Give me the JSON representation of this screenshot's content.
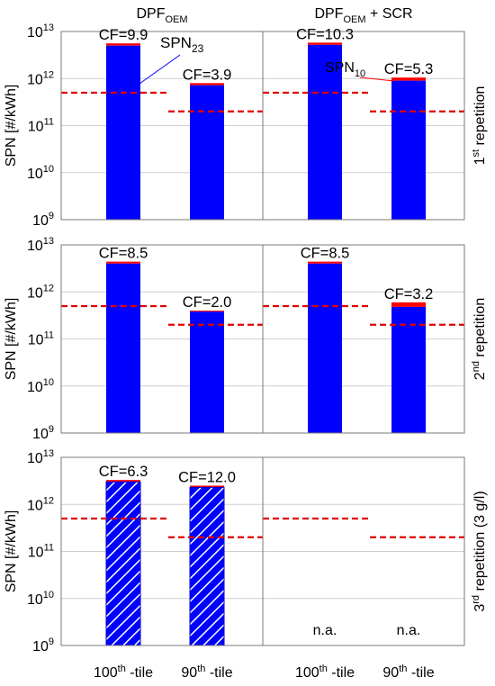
{
  "chart_data": {
    "type": "bar",
    "yscale": "log",
    "ylim": [
      1000000000.0,
      10000000000000.0
    ],
    "grid": "horizontal",
    "ylabel": "SPN [#/kWh]",
    "ytick_values": [
      1000000000.0,
      10000000000.0,
      100000000000.0,
      1000000000000.0,
      10000000000000.0
    ],
    "ytick_exponents": [
      "9",
      "10",
      "11",
      "12",
      "13"
    ],
    "ytick_base": "10",
    "categories": [
      {
        "main": "100",
        "sup": "th",
        "rest": " -tile"
      },
      {
        "main": "90",
        "sup": "th",
        "rest": " -tile"
      }
    ],
    "columns": [
      {
        "main": "DPF",
        "sub": "OEM",
        "rest": ""
      },
      {
        "main": "DPF",
        "sub": "OEM",
        "rest": " + SCR"
      }
    ],
    "rows": [
      {
        "main": "1",
        "sup": "st",
        "rest": " repetition"
      },
      {
        "main": "2",
        "sup": "nd",
        "rest": " repetition"
      },
      {
        "main": "3",
        "sup": "rd",
        "rest": " repetition (3 g/l)"
      }
    ],
    "series": [
      {
        "name_main": "SPN",
        "name_sub": "23",
        "color": "#0000ff"
      },
      {
        "name_main": "SPN",
        "name_sub": "10",
        "color": "#ff0000"
      }
    ],
    "limit_lines": {
      "color": "#e00000",
      "values": [
        500000000000.0,
        200000000000.0
      ]
    },
    "na_text": "n.a.",
    "panels": [
      {
        "row": 0,
        "col": 0,
        "bars": [
          {
            "spn23": 5000000000000.0,
            "spn10": 5600000000000.0,
            "cf": "CF=9.9",
            "hatch": false
          },
          {
            "spn23": 720000000000.0,
            "spn10": 800000000000.0,
            "cf": "CF=3.9",
            "hatch": false
          }
        ]
      },
      {
        "row": 0,
        "col": 1,
        "bars": [
          {
            "spn23": 5200000000000.0,
            "spn10": 5800000000000.0,
            "cf": "CF=10.3",
            "hatch": false
          },
          {
            "spn23": 900000000000.0,
            "spn10": 1050000000000.0,
            "cf": "CF=5.3",
            "hatch": false
          }
        ]
      },
      {
        "row": 1,
        "col": 0,
        "bars": [
          {
            "spn23": 4000000000000.0,
            "spn10": 4400000000000.0,
            "cf": "CF=8.5",
            "hatch": false
          },
          {
            "spn23": 380000000000.0,
            "spn10": 400000000000.0,
            "cf": "CF=2.0",
            "hatch": false
          }
        ]
      },
      {
        "row": 1,
        "col": 1,
        "bars": [
          {
            "spn23": 4000000000000.0,
            "spn10": 4400000000000.0,
            "cf": "CF=8.5",
            "hatch": false
          },
          {
            "spn23": 480000000000.0,
            "spn10": 600000000000.0,
            "cf": "CF=3.2",
            "hatch": false
          }
        ]
      },
      {
        "row": 2,
        "col": 0,
        "bars": [
          {
            "spn23": 3000000000000.0,
            "spn10": 3300000000000.0,
            "cf": "CF=6.3",
            "hatch": true
          },
          {
            "spn23": 2300000000000.0,
            "spn10": 2500000000000.0,
            "cf": "CF=12.0",
            "hatch": true
          }
        ]
      },
      {
        "row": 2,
        "col": 1,
        "bars": [
          {
            "na": true
          },
          {
            "na": true
          }
        ]
      }
    ]
  }
}
